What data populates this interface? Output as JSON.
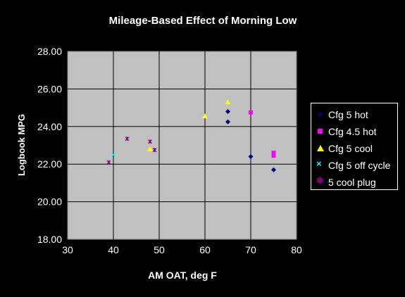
{
  "chart_data": {
    "type": "scatter",
    "title": "Mileage-Based Effect of Morning Low",
    "xlabel": "AM OAT, deg F",
    "ylabel": "Logbook MPG",
    "xlim": [
      30,
      80
    ],
    "ylim": [
      18,
      28
    ],
    "xticks": [
      "30",
      "40",
      "50",
      "60",
      "70",
      "80"
    ],
    "yticks": [
      "18.00",
      "20.00",
      "22.00",
      "24.00",
      "26.00",
      "28.00"
    ],
    "grid": true,
    "legend_position": "right",
    "series": [
      {
        "name": "Cfg 5 hot",
        "marker": "diamond",
        "color": "#000080",
        "points": [
          [
            65,
            24.8
          ],
          [
            65,
            24.25
          ],
          [
            70,
            22.4
          ],
          [
            75,
            21.7
          ]
        ]
      },
      {
        "name": "Cfg 4.5 hot",
        "marker": "square",
        "color": "#ff00ff",
        "points": [
          [
            70,
            24.75
          ],
          [
            75,
            22.6
          ],
          [
            75,
            22.45
          ]
        ]
      },
      {
        "name": "Cfg 5 cool",
        "marker": "triangle",
        "color": "#ffff00",
        "points": [
          [
            60,
            24.55
          ],
          [
            65,
            25.3
          ],
          [
            48,
            22.8
          ]
        ]
      },
      {
        "name": "Cfg 5 off cycle",
        "marker": "x",
        "color": "#00ffff",
        "points": [
          [
            40,
            22.5
          ]
        ]
      },
      {
        "name": "5 cool plug",
        "marker": "star",
        "color": "#800080",
        "points": [
          [
            39,
            22.1
          ],
          [
            43,
            23.35
          ],
          [
            48,
            23.2
          ],
          [
            49,
            22.75
          ]
        ]
      }
    ]
  }
}
